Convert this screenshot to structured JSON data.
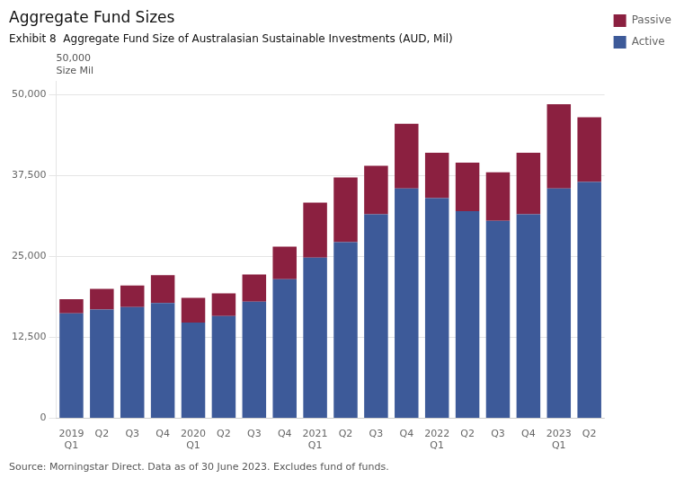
{
  "chart_data": {
    "type": "bar",
    "stacked": true,
    "title": "Aggregate Fund Sizes",
    "subtitle": "Exhibit 8  Aggregate Fund Size of Australasian Sustainable Investments (AUD, Mil)",
    "source": "Source: Morningstar Direct. Data as of 30 June 2023. Excludes fund of funds.",
    "annotations": [
      "50,000\nSize Mil"
    ],
    "categories": [
      "2019\nQ1",
      "Q2",
      "Q3",
      "Q4",
      "2020\nQ1",
      "Q2",
      "Q3",
      "Q4",
      "2021\nQ1",
      "Q2",
      "Q3",
      "Q4",
      "2022\nQ1",
      "Q2",
      "Q3",
      "Q4",
      "2023\nQ1",
      "Q2"
    ],
    "series": [
      {
        "name": "Active",
        "color": "#3d5a99",
        "values": [
          16200,
          16800,
          17200,
          17800,
          14800,
          15800,
          18000,
          21500,
          24800,
          27200,
          31500,
          35500,
          34000,
          32000,
          30500,
          31500,
          35500,
          36500
        ]
      },
      {
        "name": "Passive",
        "color": "#8b2040",
        "values": [
          2200,
          3200,
          3300,
          4300,
          3800,
          3500,
          4200,
          5000,
          8500,
          10000,
          7500,
          10000,
          7000,
          7500,
          7500,
          9500,
          13000,
          10000
        ]
      }
    ],
    "ylim": [
      0,
      52000
    ],
    "yticks": [
      0,
      {
        "value": 12500,
        "label": "12,500"
      },
      {
        "value": 25000,
        "label": "25,000"
      },
      {
        "value": 37500,
        "label": "37,500"
      },
      {
        "value": 50000,
        "label": "50,000"
      }
    ],
    "grid": true,
    "legend": "upper right"
  }
}
